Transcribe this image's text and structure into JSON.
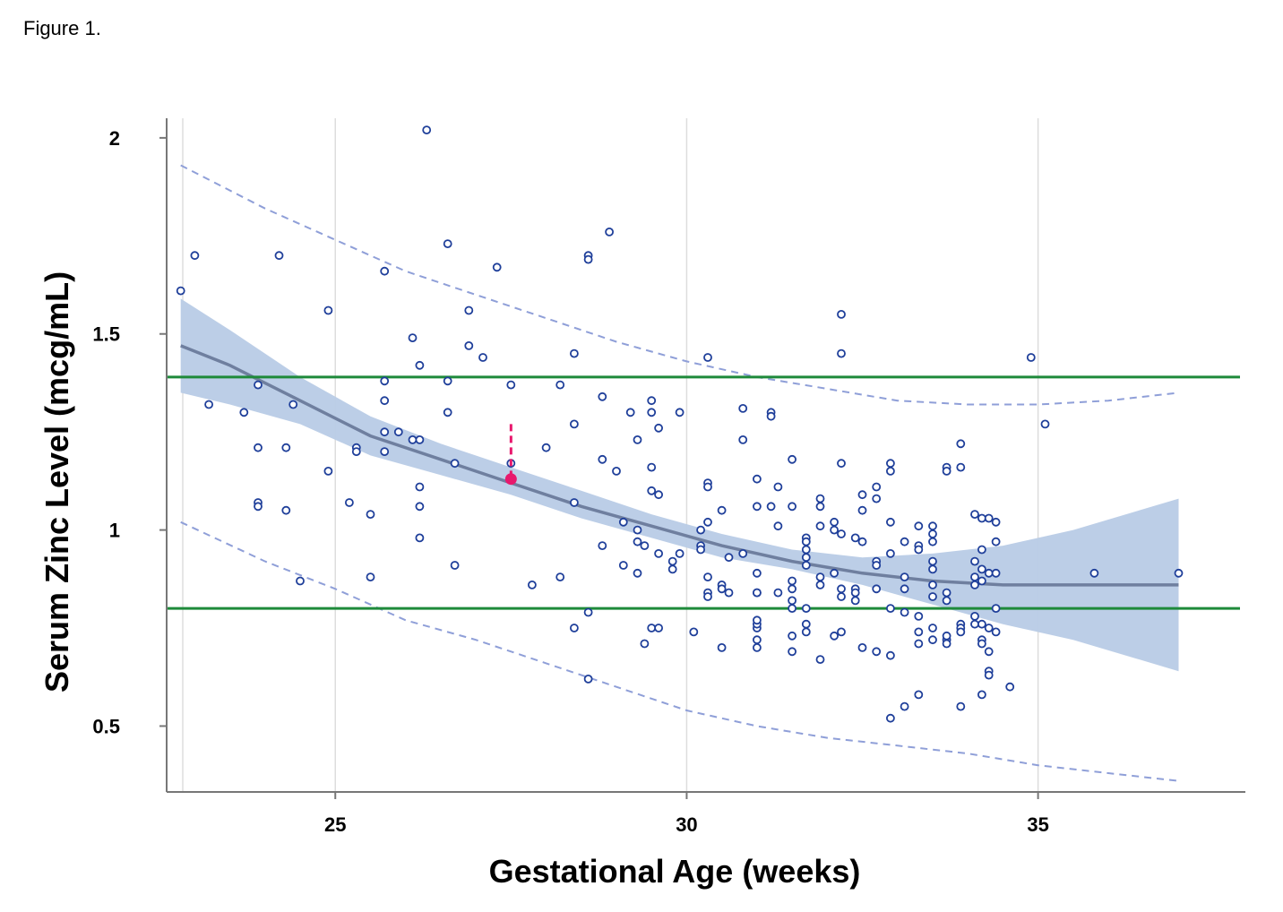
{
  "figure_label": "Figure 1.",
  "chart_data": {
    "type": "scatter",
    "title": "",
    "xlabel": "Gestational Age (weeks)",
    "ylabel": "Serum Zinc Level (mcg/mL)",
    "xlim": [
      22.6,
      37.95
    ],
    "ylim": [
      0.332,
      2.05
    ],
    "x_ticks": [
      25,
      30,
      35
    ],
    "x_tick_labels": [
      "25",
      "30",
      "35"
    ],
    "y_ticks": [
      0.5,
      1,
      1.5,
      2
    ],
    "y_tick_labels": [
      "0.5",
      "1",
      "1.5",
      "2"
    ],
    "grid": "vertical",
    "legend": "none",
    "colors": {
      "points": "#1f3f9a",
      "fit_line": "#6f7f9f",
      "confidence_band": "#b8cbe6",
      "prediction_interval": "#8f9fd8",
      "reference_lines": "#1e8a3a",
      "highlight": "#e8186d",
      "grid": "#dddddd",
      "axis": "#777777"
    },
    "reference_lines": [
      1.39,
      0.8
    ],
    "fit_curve": {
      "x": [
        22.8,
        23.5,
        24.5,
        25.5,
        26.5,
        27.5,
        28.5,
        29.5,
        30.5,
        31.5,
        32.5,
        33.5,
        34.5,
        35.5,
        37.0
      ],
      "y": [
        1.47,
        1.42,
        1.33,
        1.24,
        1.18,
        1.12,
        1.06,
        1.01,
        0.96,
        0.92,
        0.89,
        0.87,
        0.86,
        0.86,
        0.86
      ]
    },
    "confidence_band": {
      "x": [
        22.8,
        23.5,
        24.5,
        25.5,
        26.5,
        27.5,
        28.5,
        29.5,
        30.5,
        31.5,
        32.5,
        33.5,
        34.5,
        35.5,
        37.0
      ],
      "upper": [
        1.59,
        1.51,
        1.39,
        1.29,
        1.22,
        1.16,
        1.1,
        1.04,
        0.99,
        0.95,
        0.93,
        0.94,
        0.96,
        1.0,
        1.08
      ],
      "lower": [
        1.35,
        1.32,
        1.27,
        1.19,
        1.14,
        1.09,
        1.03,
        0.98,
        0.93,
        0.9,
        0.86,
        0.81,
        0.76,
        0.72,
        0.64
      ]
    },
    "prediction_interval": {
      "x": [
        22.8,
        24.0,
        25.0,
        26.0,
        27.0,
        28.0,
        29.0,
        30.0,
        31.0,
        32.0,
        33.0,
        34.0,
        35.0,
        36.0,
        37.0
      ],
      "upper": [
        1.93,
        1.82,
        1.74,
        1.66,
        1.6,
        1.54,
        1.48,
        1.43,
        1.39,
        1.36,
        1.33,
        1.32,
        1.32,
        1.33,
        1.35
      ],
      "lower": [
        1.02,
        0.92,
        0.85,
        0.77,
        0.72,
        0.66,
        0.6,
        0.54,
        0.5,
        0.47,
        0.45,
        0.43,
        0.4,
        0.38,
        0.36
      ]
    },
    "highlight": {
      "x": 27.5,
      "y": 1.13,
      "y_top": 1.27
    },
    "series": [
      {
        "points": [
          [
            22.8,
            1.61
          ],
          [
            23.0,
            1.7
          ],
          [
            23.2,
            1.32
          ],
          [
            23.7,
            1.3
          ],
          [
            23.9,
            1.37
          ],
          [
            23.9,
            1.21
          ],
          [
            23.9,
            1.07
          ],
          [
            23.9,
            1.06
          ],
          [
            24.2,
            1.7
          ],
          [
            24.3,
            1.21
          ],
          [
            24.3,
            1.05
          ],
          [
            24.4,
            1.32
          ],
          [
            24.5,
            0.87
          ],
          [
            24.9,
            1.56
          ],
          [
            24.9,
            1.15
          ],
          [
            25.2,
            1.07
          ],
          [
            25.3,
            1.21
          ],
          [
            25.3,
            1.2
          ],
          [
            25.5,
            1.04
          ],
          [
            25.5,
            0.88
          ],
          [
            25.7,
            1.66
          ],
          [
            25.7,
            1.38
          ],
          [
            25.7,
            1.33
          ],
          [
            25.7,
            1.25
          ],
          [
            25.7,
            1.2
          ],
          [
            25.9,
            1.25
          ],
          [
            26.1,
            1.49
          ],
          [
            26.1,
            1.23
          ],
          [
            26.2,
            1.42
          ],
          [
            26.2,
            1.23
          ],
          [
            26.2,
            1.11
          ],
          [
            26.2,
            1.06
          ],
          [
            26.2,
            0.98
          ],
          [
            26.3,
            2.02
          ],
          [
            26.6,
            1.73
          ],
          [
            26.6,
            1.38
          ],
          [
            26.6,
            1.3
          ],
          [
            26.7,
            1.17
          ],
          [
            26.7,
            0.91
          ],
          [
            26.9,
            1.56
          ],
          [
            26.9,
            1.47
          ],
          [
            27.1,
            1.44
          ],
          [
            27.3,
            1.67
          ],
          [
            27.5,
            1.37
          ],
          [
            27.5,
            1.17
          ],
          [
            27.8,
            0.86
          ],
          [
            28.0,
            1.21
          ],
          [
            28.2,
            1.37
          ],
          [
            28.2,
            0.88
          ],
          [
            28.4,
            1.45
          ],
          [
            28.4,
            1.27
          ],
          [
            28.4,
            1.07
          ],
          [
            28.4,
            0.75
          ],
          [
            28.6,
            1.7
          ],
          [
            28.6,
            1.69
          ],
          [
            28.6,
            0.79
          ],
          [
            28.6,
            0.62
          ],
          [
            28.8,
            1.34
          ],
          [
            28.8,
            1.18
          ],
          [
            28.8,
            0.96
          ],
          [
            28.9,
            1.76
          ],
          [
            29.0,
            1.15
          ],
          [
            29.1,
            1.02
          ],
          [
            29.1,
            0.91
          ],
          [
            29.2,
            1.3
          ],
          [
            29.3,
            1.23
          ],
          [
            29.3,
            1.0
          ],
          [
            29.3,
            0.97
          ],
          [
            29.3,
            0.89
          ],
          [
            29.4,
            0.96
          ],
          [
            29.4,
            0.71
          ],
          [
            29.5,
            1.33
          ],
          [
            29.5,
            1.3
          ],
          [
            29.5,
            1.16
          ],
          [
            29.5,
            1.1
          ],
          [
            29.5,
            0.75
          ],
          [
            29.6,
            1.26
          ],
          [
            29.6,
            1.09
          ],
          [
            29.6,
            0.94
          ],
          [
            29.6,
            0.75
          ],
          [
            29.8,
            0.92
          ],
          [
            29.8,
            0.9
          ],
          [
            29.9,
            1.3
          ],
          [
            29.9,
            0.94
          ],
          [
            30.1,
            0.74
          ],
          [
            30.2,
            1.0
          ],
          [
            30.2,
            0.96
          ],
          [
            30.2,
            0.95
          ],
          [
            30.3,
            1.44
          ],
          [
            30.3,
            1.12
          ],
          [
            30.3,
            1.11
          ],
          [
            30.3,
            1.02
          ],
          [
            30.3,
            0.88
          ],
          [
            30.3,
            0.84
          ],
          [
            30.3,
            0.83
          ],
          [
            30.5,
            1.05
          ],
          [
            30.5,
            0.86
          ],
          [
            30.5,
            0.85
          ],
          [
            30.5,
            0.7
          ],
          [
            30.6,
            0.93
          ],
          [
            30.6,
            0.84
          ],
          [
            30.8,
            1.31
          ],
          [
            30.8,
            1.23
          ],
          [
            30.8,
            0.94
          ],
          [
            31.0,
            1.13
          ],
          [
            31.0,
            0.89
          ],
          [
            31.0,
            0.84
          ],
          [
            31.0,
            0.75
          ],
          [
            31.0,
            0.72
          ],
          [
            31.0,
            0.7
          ],
          [
            31.0,
            0.76
          ],
          [
            31.0,
            0.77
          ],
          [
            31.0,
            1.06
          ],
          [
            31.0,
            0.84
          ],
          [
            31.2,
            1.3
          ],
          [
            31.2,
            1.29
          ],
          [
            31.2,
            1.06
          ],
          [
            31.3,
            1.11
          ],
          [
            31.3,
            1.01
          ],
          [
            31.3,
            0.84
          ],
          [
            31.5,
            1.18
          ],
          [
            31.5,
            1.06
          ],
          [
            31.5,
            0.87
          ],
          [
            31.5,
            0.82
          ],
          [
            31.5,
            0.8
          ],
          [
            31.5,
            0.73
          ],
          [
            31.5,
            0.69
          ],
          [
            31.5,
            0.85
          ],
          [
            31.7,
            0.98
          ],
          [
            31.7,
            0.95
          ],
          [
            31.7,
            0.93
          ],
          [
            31.7,
            0.91
          ],
          [
            31.7,
            0.8
          ],
          [
            31.7,
            0.76
          ],
          [
            31.7,
            0.74
          ],
          [
            31.7,
            0.97
          ],
          [
            31.9,
            1.08
          ],
          [
            31.9,
            1.06
          ],
          [
            31.9,
            1.01
          ],
          [
            31.9,
            0.88
          ],
          [
            31.9,
            0.86
          ],
          [
            31.9,
            0.67
          ],
          [
            32.1,
            1.02
          ],
          [
            32.1,
            0.89
          ],
          [
            32.1,
            0.73
          ],
          [
            32.1,
            1.0
          ],
          [
            32.2,
            1.55
          ],
          [
            32.2,
            1.45
          ],
          [
            32.2,
            1.17
          ],
          [
            32.2,
            0.99
          ],
          [
            32.2,
            0.85
          ],
          [
            32.2,
            0.83
          ],
          [
            32.2,
            0.74
          ],
          [
            32.4,
            0.98
          ],
          [
            32.4,
            0.85
          ],
          [
            32.4,
            0.82
          ],
          [
            32.4,
            0.84
          ],
          [
            32.5,
            1.09
          ],
          [
            32.5,
            1.05
          ],
          [
            32.5,
            0.97
          ],
          [
            32.5,
            0.7
          ],
          [
            32.7,
            1.11
          ],
          [
            32.7,
            1.08
          ],
          [
            32.7,
            0.92
          ],
          [
            32.7,
            0.85
          ],
          [
            32.7,
            0.69
          ],
          [
            32.7,
            0.91
          ],
          [
            32.9,
            1.17
          ],
          [
            32.9,
            1.15
          ],
          [
            32.9,
            1.02
          ],
          [
            32.9,
            0.94
          ],
          [
            32.9,
            0.8
          ],
          [
            32.9,
            0.68
          ],
          [
            32.9,
            0.52
          ],
          [
            33.1,
            0.97
          ],
          [
            33.1,
            0.88
          ],
          [
            33.1,
            0.85
          ],
          [
            33.1,
            0.79
          ],
          [
            33.1,
            0.55
          ],
          [
            33.3,
            0.96
          ],
          [
            33.3,
            0.95
          ],
          [
            33.3,
            0.78
          ],
          [
            33.3,
            0.74
          ],
          [
            33.3,
            0.71
          ],
          [
            33.3,
            0.58
          ],
          [
            33.3,
            1.01
          ],
          [
            33.5,
            1.01
          ],
          [
            33.5,
            0.92
          ],
          [
            33.5,
            0.9
          ],
          [
            33.5,
            0.86
          ],
          [
            33.5,
            0.83
          ],
          [
            33.5,
            0.75
          ],
          [
            33.5,
            0.72
          ],
          [
            33.5,
            0.99
          ],
          [
            33.5,
            0.97
          ],
          [
            33.7,
            1.16
          ],
          [
            33.7,
            1.15
          ],
          [
            33.7,
            0.84
          ],
          [
            33.7,
            0.82
          ],
          [
            33.7,
            0.72
          ],
          [
            33.7,
            0.71
          ],
          [
            33.7,
            0.73
          ],
          [
            33.9,
            1.22
          ],
          [
            33.9,
            1.16
          ],
          [
            33.9,
            0.76
          ],
          [
            33.9,
            0.75
          ],
          [
            33.9,
            0.74
          ],
          [
            33.9,
            0.55
          ],
          [
            34.1,
            1.04
          ],
          [
            34.1,
            0.92
          ],
          [
            34.1,
            0.86
          ],
          [
            34.1,
            0.78
          ],
          [
            34.1,
            0.76
          ],
          [
            34.1,
            0.88
          ],
          [
            34.2,
            1.03
          ],
          [
            34.2,
            0.95
          ],
          [
            34.2,
            0.9
          ],
          [
            34.2,
            0.87
          ],
          [
            34.2,
            0.76
          ],
          [
            34.2,
            0.72
          ],
          [
            34.2,
            0.71
          ],
          [
            34.2,
            0.58
          ],
          [
            34.3,
            1.03
          ],
          [
            34.3,
            0.89
          ],
          [
            34.3,
            0.75
          ],
          [
            34.3,
            0.69
          ],
          [
            34.3,
            0.64
          ],
          [
            34.3,
            0.63
          ],
          [
            34.4,
            1.02
          ],
          [
            34.4,
            0.97
          ],
          [
            34.4,
            0.89
          ],
          [
            34.4,
            0.8
          ],
          [
            34.4,
            0.74
          ],
          [
            34.6,
            0.6
          ],
          [
            35.1,
            1.27
          ],
          [
            35.8,
            0.89
          ],
          [
            37.0,
            0.89
          ],
          [
            34.9,
            1.44
          ]
        ]
      }
    ]
  }
}
